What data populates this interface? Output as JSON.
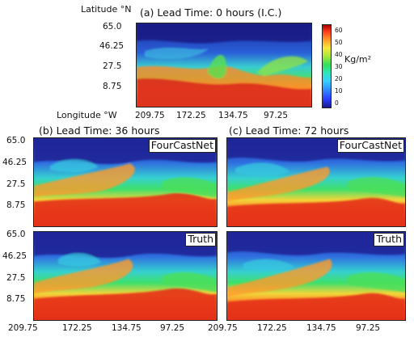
{
  "labels": {
    "latitude": "Latitude",
    "latitude_unit": "°N",
    "longitude": "Longitude",
    "longitude_unit": "°W",
    "title_a": "(a) Lead Time: 0 hours (I.C.)",
    "title_b": "(b) Lead Time: 36 hours",
    "title_c": "(c) Lead Time: 72 hours",
    "tag_model": "FourCastNet",
    "tag_truth": "Truth"
  },
  "ticks": {
    "lat": [
      "65.0",
      "46.25",
      "27.5",
      "8.75"
    ],
    "lon": [
      "209.75",
      "172.25",
      "134.75",
      "97.25"
    ]
  },
  "colorbar": {
    "unit": "Kg/m²",
    "ticks": [
      "60",
      "50",
      "40",
      "30",
      "20",
      "10",
      "0"
    ],
    "colors": [
      "#1a1a8c",
      "#2b3cff",
      "#2f8fff",
      "#36d0ff",
      "#2de6b8",
      "#35e05a",
      "#a7e83a",
      "#f6e93a",
      "#ff9a2a",
      "#ff3c1a",
      "#a40000"
    ]
  }
}
